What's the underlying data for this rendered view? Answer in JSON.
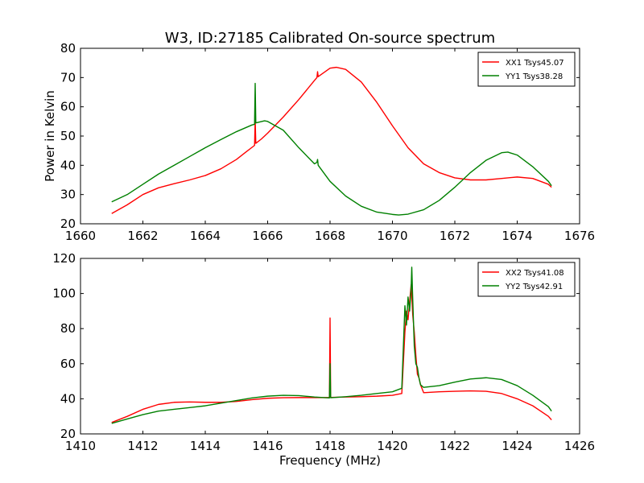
{
  "chart_data": [
    {
      "type": "line",
      "title": "W3, ID:27185 Calibrated On-source spectrum",
      "xlabel": "",
      "ylabel": "Power in Kelvin",
      "xlim": [
        1660,
        1676
      ],
      "ylim": [
        20,
        80
      ],
      "xticks": [
        1660,
        1662,
        1664,
        1666,
        1668,
        1670,
        1672,
        1674,
        1676
      ],
      "xtick_labels": [
        "1660",
        "1662",
        "1664",
        "1666",
        "1668",
        "1670",
        "1672",
        "1674",
        "1676"
      ],
      "yticks": [
        20,
        30,
        40,
        50,
        60,
        70,
        80
      ],
      "ytick_labels": [
        "20",
        "30",
        "40",
        "50",
        "60",
        "70",
        "80"
      ],
      "grid": false,
      "legend": "top-right",
      "series": [
        {
          "name": "XX1 Tsys45.07",
          "color": "#ff0000",
          "x": [
            1661.0,
            1661.5,
            1662.0,
            1662.5,
            1663.0,
            1663.5,
            1664.0,
            1664.5,
            1665.0,
            1665.3,
            1665.58,
            1665.6,
            1665.62,
            1665.8,
            1666.0,
            1666.5,
            1667.0,
            1667.5,
            1667.58,
            1667.6,
            1667.62,
            1668.0,
            1668.2,
            1668.5,
            1669.0,
            1669.5,
            1670.0,
            1670.5,
            1671.0,
            1671.5,
            1672.0,
            1672.5,
            1673.0,
            1673.5,
            1674.0,
            1674.5,
            1675.0,
            1675.1
          ],
          "values": [
            23.5,
            26.5,
            30.0,
            32.3,
            33.7,
            35.0,
            36.5,
            38.8,
            42.0,
            44.5,
            46.8,
            55.5,
            47.5,
            49.0,
            51.0,
            56.5,
            62.5,
            69.0,
            70.0,
            72.0,
            70.3,
            73.2,
            73.5,
            72.8,
            68.5,
            61.5,
            53.5,
            46.0,
            40.5,
            37.5,
            35.7,
            35.0,
            35.0,
            35.5,
            36.0,
            35.5,
            33.5,
            32.5
          ]
        },
        {
          "name": "YY1 Tsys38.28",
          "color": "#008000",
          "x": [
            1661.0,
            1661.5,
            1662.0,
            1662.5,
            1663.0,
            1663.5,
            1664.0,
            1664.5,
            1665.0,
            1665.5,
            1665.58,
            1665.6,
            1665.62,
            1665.9,
            1666.0,
            1666.5,
            1667.0,
            1667.5,
            1667.58,
            1667.6,
            1667.62,
            1668.0,
            1668.5,
            1669.0,
            1669.5,
            1670.0,
            1670.2,
            1670.5,
            1671.0,
            1671.5,
            1672.0,
            1672.5,
            1673.0,
            1673.5,
            1673.7,
            1674.0,
            1674.5,
            1675.0,
            1675.1
          ],
          "values": [
            27.5,
            30.0,
            33.5,
            37.0,
            40.0,
            43.0,
            46.0,
            48.8,
            51.5,
            53.8,
            54.0,
            68.0,
            54.5,
            55.2,
            55.0,
            52.0,
            46.0,
            40.5,
            41.0,
            42.0,
            40.0,
            34.5,
            29.5,
            26.0,
            24.0,
            23.2,
            23.0,
            23.3,
            24.8,
            28.0,
            32.5,
            37.5,
            41.7,
            44.3,
            44.5,
            43.5,
            39.5,
            34.5,
            33.0
          ]
        }
      ]
    },
    {
      "type": "line",
      "title": "",
      "xlabel": "Frequency (MHz)",
      "ylabel": "",
      "xlim": [
        1410,
        1426
      ],
      "ylim": [
        20,
        120
      ],
      "xticks": [
        1410,
        1412,
        1414,
        1416,
        1418,
        1420,
        1422,
        1424,
        1426
      ],
      "xtick_labels": [
        "1410",
        "1412",
        "1414",
        "1416",
        "1418",
        "1420",
        "1422",
        "1424",
        "1426"
      ],
      "yticks": [
        20,
        40,
        60,
        80,
        100,
        120
      ],
      "ytick_labels": [
        "20",
        "40",
        "60",
        "80",
        "100",
        "120"
      ],
      "grid": false,
      "legend": "top-right",
      "series": [
        {
          "name": "XX2 Tsys41.08",
          "color": "#ff0000",
          "x": [
            1411.0,
            1411.5,
            1412.0,
            1412.5,
            1413.0,
            1413.5,
            1414.0,
            1414.5,
            1415.0,
            1415.5,
            1416.0,
            1416.5,
            1417.0,
            1417.5,
            1417.98,
            1418.0,
            1418.02,
            1418.5,
            1419.0,
            1419.5,
            1420.0,
            1420.3,
            1420.4,
            1420.45,
            1420.5,
            1420.55,
            1420.6,
            1420.65,
            1420.7,
            1420.75,
            1420.8,
            1420.85,
            1420.9,
            1421.0,
            1421.5,
            1422.0,
            1422.5,
            1423.0,
            1423.5,
            1424.0,
            1424.5,
            1425.0,
            1425.1
          ],
          "values": [
            26.5,
            30.0,
            34.0,
            36.8,
            38.0,
            38.2,
            38.0,
            38.0,
            38.5,
            39.5,
            40.3,
            40.6,
            40.7,
            40.7,
            40.7,
            86.0,
            40.8,
            41.0,
            41.2,
            41.5,
            42.0,
            43.0,
            78.0,
            90.0,
            85.0,
            95.0,
            105.0,
            88.0,
            78.0,
            65.0,
            54.0,
            52.0,
            48.0,
            43.5,
            44.0,
            44.3,
            44.5,
            44.3,
            43.0,
            40.0,
            36.0,
            30.0,
            28.0
          ]
        },
        {
          "name": "YY2 Tsys42.91",
          "color": "#008000",
          "x": [
            1411.0,
            1411.5,
            1412.0,
            1412.5,
            1413.0,
            1413.5,
            1414.0,
            1414.5,
            1415.0,
            1415.5,
            1416.0,
            1416.5,
            1417.0,
            1417.5,
            1417.98,
            1418.0,
            1418.02,
            1418.5,
            1419.0,
            1419.5,
            1420.0,
            1420.3,
            1420.4,
            1420.45,
            1420.5,
            1420.55,
            1420.6,
            1420.62,
            1420.65,
            1420.7,
            1420.75,
            1420.8,
            1420.85,
            1420.9,
            1421.0,
            1421.5,
            1422.0,
            1422.5,
            1423.0,
            1423.5,
            1424.0,
            1424.5,
            1425.0,
            1425.1
          ],
          "values": [
            26.0,
            28.5,
            31.0,
            33.0,
            34.0,
            35.0,
            36.0,
            37.5,
            39.0,
            40.5,
            41.5,
            42.0,
            41.8,
            41.0,
            40.5,
            60.0,
            40.6,
            41.2,
            42.0,
            43.0,
            44.0,
            46.0,
            93.0,
            82.0,
            98.0,
            90.0,
            103.0,
            115.0,
            97.0,
            70.0,
            60.0,
            58.0,
            52.0,
            48.0,
            46.5,
            47.5,
            49.5,
            51.3,
            52.0,
            51.0,
            47.5,
            42.0,
            35.5,
            33.0
          ]
        }
      ]
    }
  ]
}
